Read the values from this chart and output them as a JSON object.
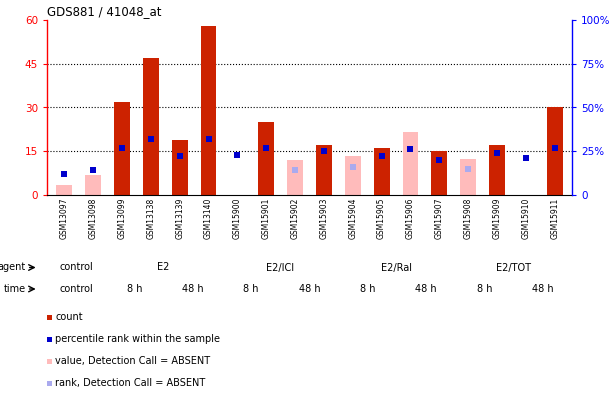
{
  "title": "GDS881 / 41048_at",
  "samples": [
    "GSM13097",
    "GSM13098",
    "GSM13099",
    "GSM13138",
    "GSM13139",
    "GSM13140",
    "GSM15900",
    "GSM15901",
    "GSM15902",
    "GSM15903",
    "GSM15904",
    "GSM15905",
    "GSM15906",
    "GSM15907",
    "GSM15908",
    "GSM15909",
    "GSM15910",
    "GSM15911"
  ],
  "count_present": [
    0,
    0,
    32,
    47,
    19,
    58,
    0,
    25,
    0,
    17,
    0,
    16,
    0,
    15,
    0,
    17,
    0,
    30
  ],
  "count_absent": [
    3.5,
    7,
    0,
    0,
    0,
    0,
    0,
    0,
    12,
    0,
    13.5,
    0,
    21.5,
    0,
    12.5,
    0,
    0,
    0
  ],
  "pct_present": [
    12,
    14,
    27,
    32,
    22,
    32,
    23,
    27,
    0,
    25,
    0,
    22,
    26,
    20,
    0,
    24,
    21,
    27
  ],
  "pct_absent": [
    0,
    0,
    0,
    0,
    0,
    0,
    0,
    0,
    14,
    0,
    16,
    0,
    0,
    0,
    15,
    0,
    0,
    0
  ],
  "ylim_left": [
    0,
    60
  ],
  "ylim_right": [
    0,
    100
  ],
  "yticks_left": [
    0,
    15,
    30,
    45,
    60
  ],
  "yticks_right": [
    0,
    25,
    50,
    75,
    100
  ],
  "ytick_labels_left": [
    "0",
    "15",
    "30",
    "45",
    "60"
  ],
  "ytick_labels_right": [
    "0",
    "25%",
    "50%",
    "75%",
    "100%"
  ],
  "agent_groups": [
    {
      "label": "control",
      "start": 0,
      "end": 2,
      "color": "#e8e8e8"
    },
    {
      "label": "E2",
      "start": 2,
      "end": 6,
      "color": "#b3ffb3"
    },
    {
      "label": "E2/ICI",
      "start": 6,
      "end": 10,
      "color": "#77dd77"
    },
    {
      "label": "E2/Ral",
      "start": 10,
      "end": 14,
      "color": "#44cc44"
    },
    {
      "label": "E2/TOT",
      "start": 14,
      "end": 18,
      "color": "#22bb22"
    }
  ],
  "time_groups": [
    {
      "label": "control",
      "start": 0,
      "end": 2,
      "color": "#e8e8e8"
    },
    {
      "label": "8 h",
      "start": 2,
      "end": 4,
      "color": "#ee82ee"
    },
    {
      "label": "48 h",
      "start": 4,
      "end": 6,
      "color": "#cc44cc"
    },
    {
      "label": "8 h",
      "start": 6,
      "end": 8,
      "color": "#ee82ee"
    },
    {
      "label": "48 h",
      "start": 8,
      "end": 10,
      "color": "#cc44cc"
    },
    {
      "label": "8 h",
      "start": 10,
      "end": 12,
      "color": "#ee82ee"
    },
    {
      "label": "48 h",
      "start": 12,
      "end": 14,
      "color": "#cc44cc"
    },
    {
      "label": "8 h",
      "start": 14,
      "end": 16,
      "color": "#ee82ee"
    },
    {
      "label": "48 h",
      "start": 16,
      "end": 18,
      "color": "#cc44cc"
    }
  ],
  "bar_color_present": "#cc2200",
  "bar_color_absent": "#ffbbbb",
  "dot_color_present": "#0000cc",
  "dot_color_absent": "#aaaaee",
  "bar_width": 0.55,
  "legend_items": [
    {
      "color": "#cc2200",
      "label": "count"
    },
    {
      "color": "#0000cc",
      "label": "percentile rank within the sample"
    },
    {
      "color": "#ffbbbb",
      "label": "value, Detection Call = ABSENT"
    },
    {
      "color": "#aaaaee",
      "label": "rank, Detection Call = ABSENT"
    }
  ]
}
